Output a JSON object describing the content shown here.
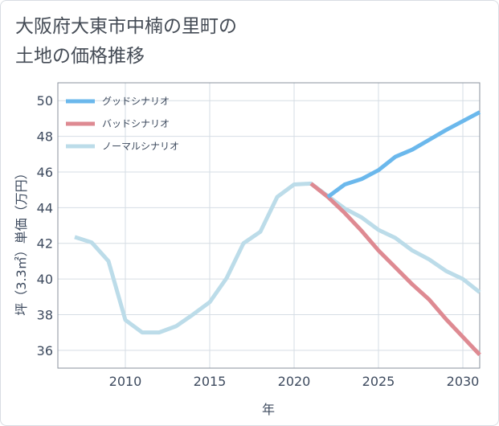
{
  "title": "大阪府大東市中楠の里町の\n土地の価格推移",
  "chart_data": {
    "type": "line",
    "title": "大阪府大東市中楠の里町の\n土地の価格推移",
    "xlabel": "年",
    "ylabel": "坪（3.3㎡）単価（万円）",
    "xlim": [
      2006,
      2031
    ],
    "ylim": [
      35,
      51
    ],
    "xticks": [
      2010,
      2015,
      2020,
      2025,
      2030
    ],
    "yticks": [
      36,
      38,
      40,
      42,
      44,
      46,
      48,
      50
    ],
    "grid": true,
    "legend_position": "top-left",
    "series": [
      {
        "name": "グッドシナリオ",
        "color": "#6bb8ec",
        "x": [
          2022,
          2023,
          2024,
          2025,
          2026,
          2027,
          2028,
          2029,
          2030,
          2031
        ],
        "y": [
          44.6,
          45.3,
          45.6,
          46.1,
          46.85,
          47.25,
          47.8,
          48.35,
          48.85,
          49.35
        ]
      },
      {
        "name": "バッドシナリオ",
        "color": "#de8a92",
        "x": [
          2021,
          2022,
          2023,
          2024,
          2025,
          2026,
          2027,
          2028,
          2029,
          2030,
          2031
        ],
        "y": [
          45.35,
          44.6,
          43.7,
          42.7,
          41.6,
          40.65,
          39.7,
          38.85,
          37.75,
          36.75,
          35.75
        ]
      },
      {
        "name": "ノーマルシナリオ",
        "color": "#bcdce9",
        "x": [
          2007,
          2008,
          2009,
          2010,
          2011,
          2012,
          2013,
          2014,
          2015,
          2016,
          2017,
          2018,
          2019,
          2020,
          2021,
          2022,
          2023,
          2024,
          2025,
          2026,
          2027,
          2028,
          2029,
          2030,
          2031
        ],
        "y": [
          42.35,
          42.05,
          41.0,
          37.7,
          37.0,
          37.0,
          37.35,
          38.0,
          38.7,
          40.05,
          42.0,
          42.65,
          44.6,
          45.3,
          45.35,
          44.65,
          43.95,
          43.45,
          42.75,
          42.3,
          41.6,
          41.1,
          40.45,
          40.0,
          39.25
        ]
      }
    ]
  }
}
